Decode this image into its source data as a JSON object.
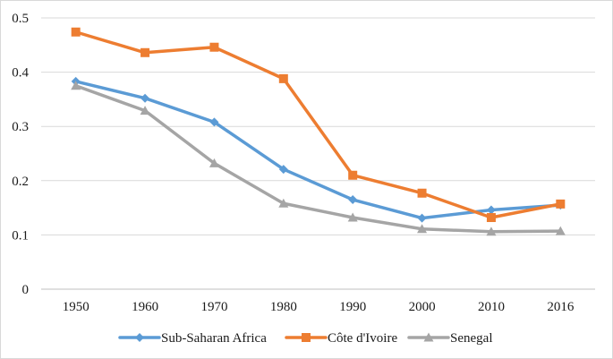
{
  "chart_data": {
    "type": "line",
    "title": "",
    "xlabel": "",
    "ylabel": "",
    "categories": [
      "1950",
      "1960",
      "1970",
      "1980",
      "1990",
      "2000",
      "2010",
      "2016"
    ],
    "ylim": [
      0,
      0.5
    ],
    "yticks": [
      0,
      0.1,
      0.2,
      0.3,
      0.4,
      0.5
    ],
    "ytick_labels": [
      "0",
      "0.1",
      "0.2",
      "0.3",
      "0.4",
      "0.5"
    ],
    "grid": "horizontal",
    "legend_position": "bottom",
    "series": [
      {
        "name": "Sub-Saharan Africa",
        "marker": "diamond",
        "color": "#5b9bd5",
        "values": [
          0.383,
          0.352,
          0.308,
          0.221,
          0.165,
          0.131,
          0.146,
          0.155
        ]
      },
      {
        "name": "Côte d'Ivoire",
        "marker": "square",
        "color": "#ed7d31",
        "values": [
          0.474,
          0.436,
          0.446,
          0.388,
          0.21,
          0.177,
          0.132,
          0.157
        ]
      },
      {
        "name": "Senegal",
        "marker": "triangle",
        "color": "#a5a5a5",
        "values": [
          0.375,
          0.329,
          0.232,
          0.158,
          0.132,
          0.111,
          0.106,
          0.107
        ]
      }
    ]
  }
}
